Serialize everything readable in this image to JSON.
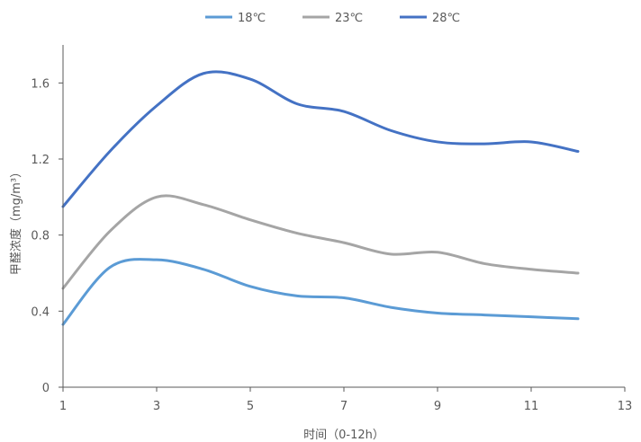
{
  "chart_data": {
    "type": "line",
    "title": "",
    "xlabel": "时间（0-12h）",
    "ylabel": "甲醛浓度（mg/m³）",
    "xlim": [
      1,
      13
    ],
    "ylim": [
      0,
      1.8
    ],
    "xticks": [
      1,
      3,
      5,
      7,
      9,
      11,
      13
    ],
    "yticks": [
      0,
      0.4,
      0.8,
      1.2,
      1.6
    ],
    "xtick_labels": [
      "1",
      "3",
      "5",
      "7",
      "9",
      "11",
      "13"
    ],
    "ytick_labels": [
      "0",
      "0.4",
      "0.8",
      "1.2",
      "1.6"
    ],
    "x": [
      1,
      2,
      3,
      4,
      5,
      6,
      7,
      8,
      9,
      10,
      11,
      12
    ],
    "grid": false,
    "legend_position": "top",
    "smooth": true,
    "series": [
      {
        "name": "18℃",
        "color": "#5b9bd5",
        "values": [
          0.33,
          0.63,
          0.67,
          0.62,
          0.53,
          0.48,
          0.47,
          0.42,
          0.39,
          0.38,
          0.37,
          0.36
        ]
      },
      {
        "name": "23℃",
        "color": "#a5a5a5",
        "values": [
          0.52,
          0.82,
          1.0,
          0.96,
          0.88,
          0.81,
          0.76,
          0.7,
          0.71,
          0.65,
          0.62,
          0.6
        ]
      },
      {
        "name": "28℃",
        "color": "#4472c4",
        "values": [
          0.95,
          1.24,
          1.48,
          1.65,
          1.62,
          1.49,
          1.45,
          1.35,
          1.29,
          1.28,
          1.29,
          1.24
        ]
      }
    ]
  }
}
